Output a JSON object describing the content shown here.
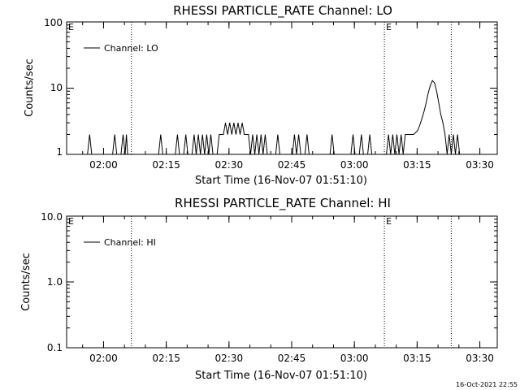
{
  "colors": {
    "background": "#ffffff",
    "foreground": "#000000"
  },
  "footer": {
    "timestamp": "16-Oct-2021 22:55"
  },
  "x_ticks": [
    "02:00",
    "02:15",
    "02:30",
    "02:45",
    "03:00",
    "03:15",
    "03:30"
  ],
  "chart_data": [
    {
      "type": "line",
      "title": "RHESSI PARTICLE_RATE Channel: LO",
      "xlabel": "Start Time (16-Nov-07 01:51:10)",
      "ylabel": "Counts/sec",
      "x_unit": "minutes after 01:51:10",
      "xlim": [
        0,
        103
      ],
      "ylim": [
        1,
        100
      ],
      "yscale": "log",
      "yticks": [
        1,
        10,
        100
      ],
      "ytick_labels": [
        "1",
        "10",
        "100"
      ],
      "legend": {
        "entries": [
          "Channel: LO"
        ],
        "position": "top-left"
      },
      "annotations": {
        "E_markers": [
          0,
          76
        ]
      },
      "vlines": [
        15.5,
        76,
        92
      ],
      "series": [
        {
          "name": "Channel: LO",
          "points": [
            [
              0,
              1
            ],
            [
              5,
              1
            ],
            [
              5.5,
              2
            ],
            [
              6,
              1
            ],
            [
              11,
              1
            ],
            [
              11.5,
              2
            ],
            [
              12,
              1
            ],
            [
              13,
              1
            ],
            [
              13.5,
              2
            ],
            [
              14,
              1
            ],
            [
              14.3,
              2
            ],
            [
              14.6,
              1
            ],
            [
              22,
              1
            ],
            [
              22.5,
              2
            ],
            [
              23,
              1
            ],
            [
              26,
              1
            ],
            [
              26.5,
              2
            ],
            [
              27,
              1
            ],
            [
              28,
              1
            ],
            [
              28.5,
              2
            ],
            [
              29,
              1
            ],
            [
              30,
              1
            ],
            [
              30.5,
              2
            ],
            [
              31,
              1
            ],
            [
              31.5,
              2
            ],
            [
              32,
              1
            ],
            [
              32.5,
              2
            ],
            [
              33,
              1
            ],
            [
              33.5,
              2
            ],
            [
              34,
              1
            ],
            [
              34.5,
              2
            ],
            [
              35,
              1
            ],
            [
              36,
              1
            ],
            [
              36.5,
              2
            ],
            [
              37,
              2
            ],
            [
              37.5,
              2
            ],
            [
              38,
              3
            ],
            [
              38.5,
              2
            ],
            [
              39,
              3
            ],
            [
              39.5,
              2
            ],
            [
              40,
              3
            ],
            [
              40.5,
              2
            ],
            [
              41,
              3
            ],
            [
              41.5,
              2
            ],
            [
              42,
              3
            ],
            [
              42.5,
              2
            ],
            [
              43,
              2
            ],
            [
              43.5,
              2
            ],
            [
              44,
              1
            ],
            [
              44.5,
              2
            ],
            [
              45,
              1
            ],
            [
              45.5,
              2
            ],
            [
              46,
              1
            ],
            [
              46.5,
              2
            ],
            [
              47,
              1
            ],
            [
              47.5,
              2
            ],
            [
              48,
              1
            ],
            [
              50,
              1
            ],
            [
              50.5,
              2
            ],
            [
              51,
              1
            ],
            [
              54,
              1
            ],
            [
              54.5,
              2
            ],
            [
              55,
              1
            ],
            [
              55.5,
              2
            ],
            [
              56,
              1
            ],
            [
              57,
              1
            ],
            [
              57.5,
              2
            ],
            [
              58,
              1
            ],
            [
              63,
              1
            ],
            [
              63.5,
              2
            ],
            [
              64,
              1
            ],
            [
              68,
              1
            ],
            [
              68.5,
              2
            ],
            [
              69,
              1
            ],
            [
              70,
              1
            ],
            [
              70.5,
              2
            ],
            [
              71,
              1
            ],
            [
              72,
              1
            ],
            [
              72.5,
              2
            ],
            [
              73,
              1
            ],
            [
              76.5,
              1
            ],
            [
              77,
              2
            ],
            [
              77.5,
              1
            ],
            [
              78,
              2
            ],
            [
              78.5,
              1
            ],
            [
              79,
              2
            ],
            [
              79.5,
              1
            ],
            [
              80,
              2
            ],
            [
              80.5,
              1
            ],
            [
              81,
              2
            ],
            [
              81.5,
              2
            ],
            [
              82,
              2
            ],
            [
              83,
              2
            ],
            [
              84,
              2.3
            ],
            [
              84.5,
              2.8
            ],
            [
              85,
              3.5
            ],
            [
              85.5,
              4.5
            ],
            [
              86,
              6
            ],
            [
              86.5,
              8.5
            ],
            [
              87,
              11
            ],
            [
              87.5,
              13
            ],
            [
              88,
              12
            ],
            [
              88.5,
              9
            ],
            [
              89,
              6
            ],
            [
              89.5,
              4
            ],
            [
              90,
              3
            ],
            [
              90.5,
              2
            ],
            [
              91,
              1
            ],
            [
              91.5,
              2
            ],
            [
              92,
              1
            ],
            [
              92.5,
              2
            ],
            [
              93,
              1
            ],
            [
              93.5,
              2
            ],
            [
              94,
              1
            ]
          ]
        }
      ]
    },
    {
      "type": "line",
      "title": "RHESSI PARTICLE_RATE Channel: HI",
      "xlabel": "Start Time (16-Nov-07 01:51:10)",
      "ylabel": "Counts/sec",
      "x_unit": "minutes after 01:51:10",
      "xlim": [
        0,
        103
      ],
      "ylim": [
        0.1,
        10
      ],
      "yscale": "log",
      "yticks": [
        0.1,
        1,
        10
      ],
      "ytick_labels": [
        "0.1",
        "1.0",
        "10.0"
      ],
      "legend": {
        "entries": [
          "Channel: HI"
        ],
        "position": "top-left"
      },
      "annotations": {
        "E_markers": [
          0,
          76
        ]
      },
      "vlines": [
        15.5,
        76,
        92
      ],
      "series": [
        {
          "name": "Channel: HI",
          "points": []
        }
      ]
    }
  ]
}
